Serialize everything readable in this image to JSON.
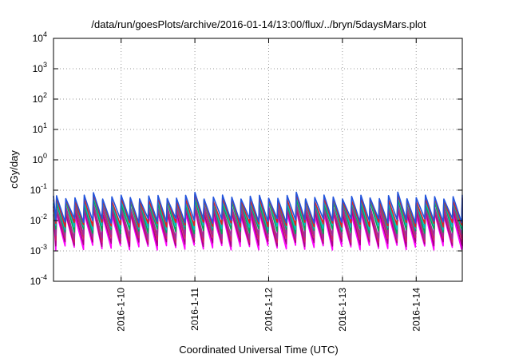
{
  "chart_data": {
    "type": "line",
    "title": "/data/run/goesPlots/archive/2016-01-14/13:00/flux/../bryn/5daysMars.plot",
    "xlabel": "Coordinated Universal Time (UTC)",
    "ylabel": "cGy/day",
    "yscale": "log",
    "ylim": [
      0.0001,
      10000
    ],
    "xlim": [
      "2016-01-09 02:00",
      "2016-01-14 15:00"
    ],
    "grid": true,
    "legend": "none",
    "y_ticks": [
      {
        "base": "10",
        "exp": "-4"
      },
      {
        "base": "10",
        "exp": "-3"
      },
      {
        "base": "10",
        "exp": "-2"
      },
      {
        "base": "10",
        "exp": "-1"
      },
      {
        "base": "10",
        "exp": "0"
      },
      {
        "base": "10",
        "exp": "1"
      },
      {
        "base": "10",
        "exp": "2"
      },
      {
        "base": "10",
        "exp": "3"
      },
      {
        "base": "10",
        "exp": "4"
      }
    ],
    "x_ticks": [
      {
        "label": "2016-1-10",
        "date": "2016-01-10"
      },
      {
        "label": "2016-1-11",
        "date": "2016-01-11"
      },
      {
        "label": "2016-1-12",
        "date": "2016-01-12"
      },
      {
        "label": "2016-1-13",
        "date": "2016-01-13"
      },
      {
        "label": "2016-1-14",
        "date": "2016-01-14"
      }
    ],
    "pattern": {
      "form": "sawtooth",
      "period_hours": 3,
      "first_peak": "2016-01-09 03:00"
    },
    "series": [
      {
        "color": "#ff00ff",
        "peak": 0.016,
        "trough": 0.0013
      },
      {
        "color": "#aa0088",
        "peak": 0.02,
        "trough": 0.0017
      },
      {
        "color": "#cc2266",
        "peak": 0.025,
        "trough": 0.0023
      },
      {
        "color": "#993399",
        "peak": 0.03,
        "trough": 0.003
      },
      {
        "color": "#00aa55",
        "peak": 0.04,
        "trough": 0.0045
      },
      {
        "color": "#00bbbb",
        "peak": 0.045,
        "trough": 0.006
      },
      {
        "color": "#dd2222",
        "peak": 0.05,
        "trough": 0.0075
      },
      {
        "color": "#2255dd",
        "peak": 0.06,
        "trough": 0.01
      }
    ]
  }
}
